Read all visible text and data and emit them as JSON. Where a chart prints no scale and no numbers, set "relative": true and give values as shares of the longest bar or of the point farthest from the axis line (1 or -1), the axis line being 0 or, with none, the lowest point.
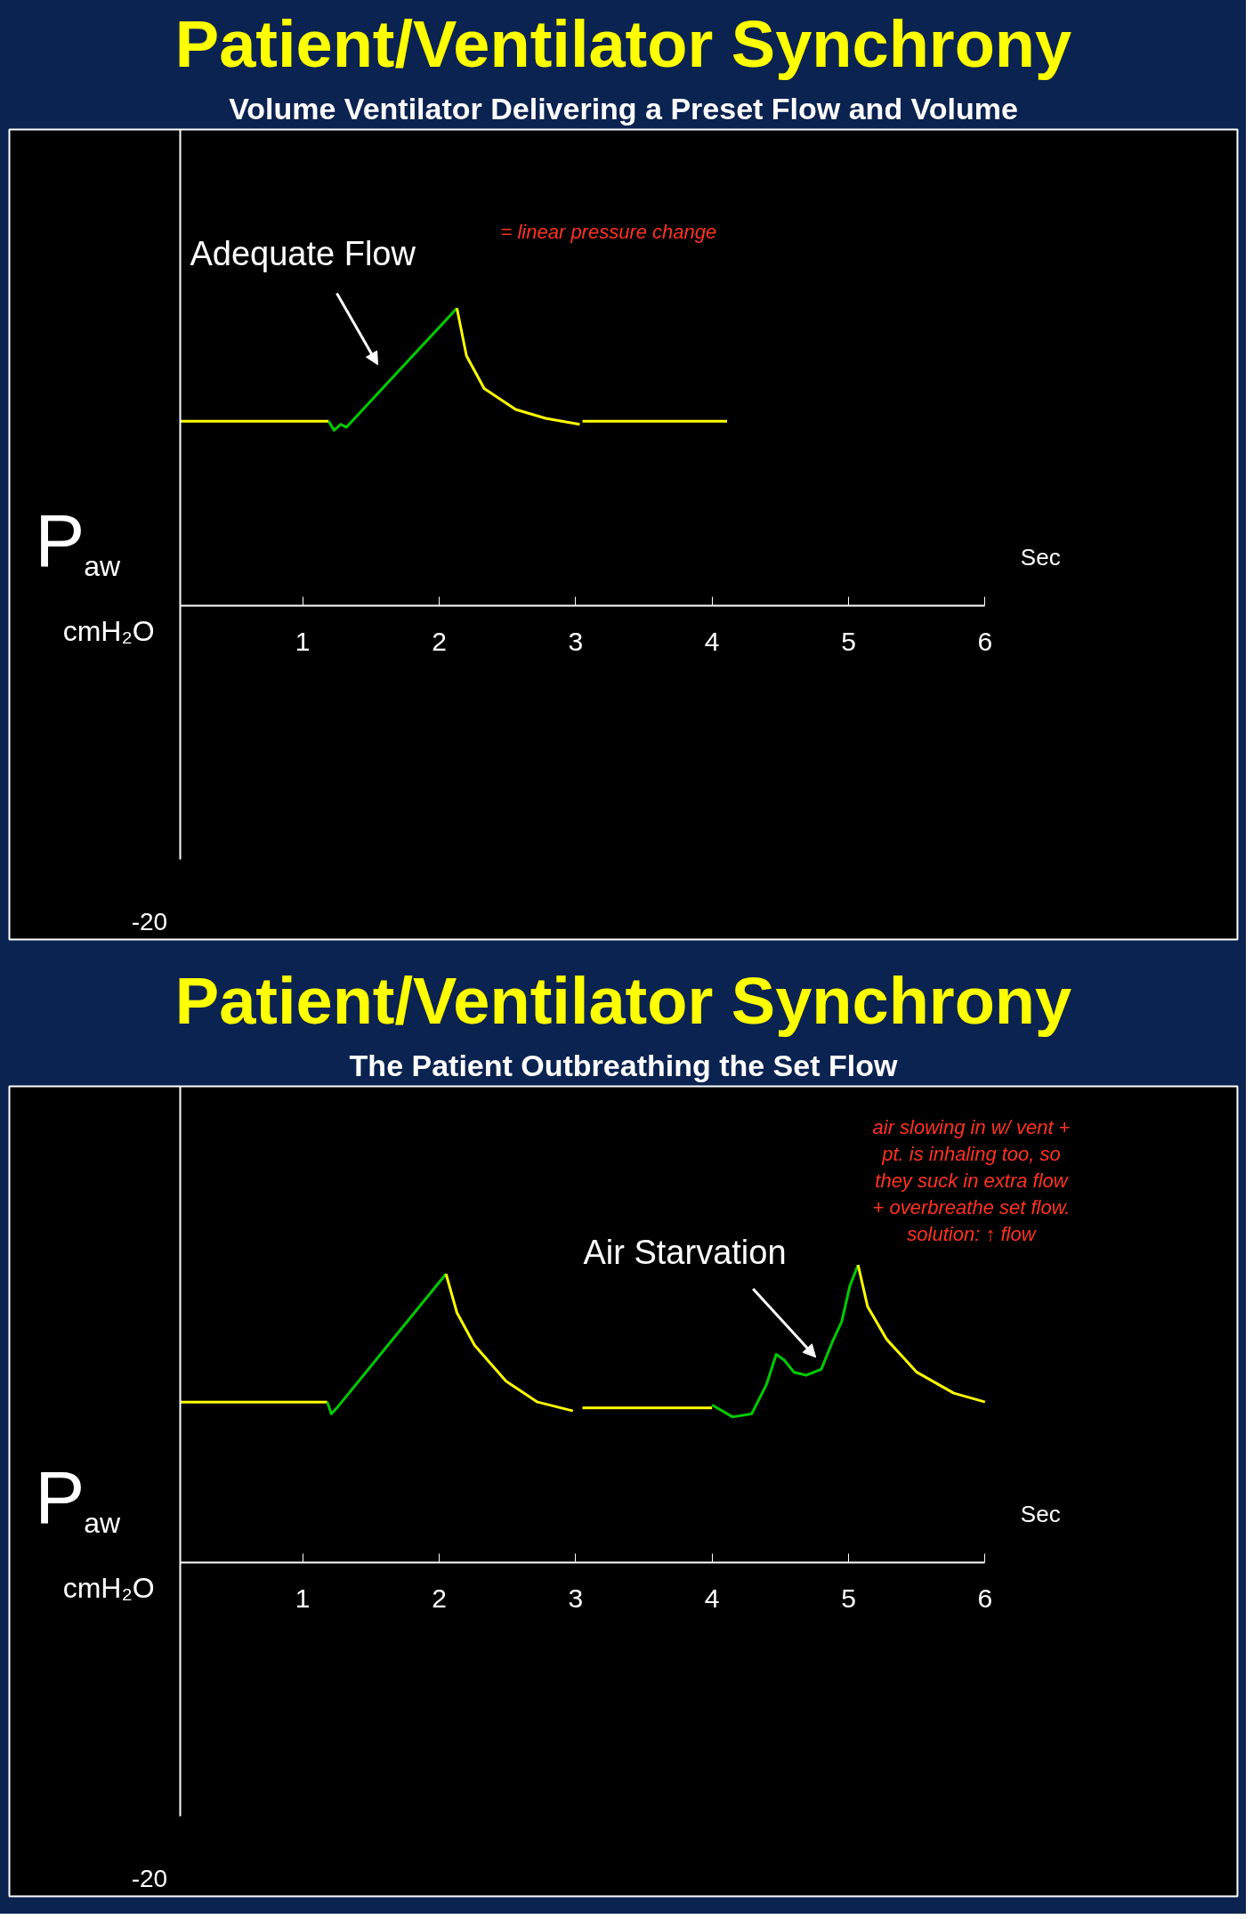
{
  "chart_data": [
    {
      "type": "line",
      "title": "Patient/Ventilator Synchrony",
      "subtitle": "Volume Ventilator Delivering a Preset Flow and Volume",
      "xlabel": "Sec",
      "ylabel": "P$_{aw}$ cmH₂O",
      "relative": true,
      "xlim": [
        0.1,
        6.0
      ],
      "xticks": [
        1,
        2,
        3,
        4,
        5,
        6
      ],
      "series": [
        {
          "color": "#ffff00",
          "x": [
            0.1,
            1.19
          ],
          "values": [
            0.62,
            0.62
          ]
        },
        {
          "color": "#00cc00",
          "x": [
            1.19,
            1.23,
            1.28,
            1.32,
            2.13
          ],
          "values": [
            0.62,
            0.59,
            0.61,
            0.6,
            1.0
          ]
        },
        {
          "color": "#ffff00",
          "x": [
            2.13,
            2.2,
            2.33,
            2.56,
            2.78,
            3.03
          ],
          "values": [
            1.0,
            0.84,
            0.73,
            0.66,
            0.63,
            0.61
          ]
        },
        {
          "color": "#ffff00",
          "x": [
            3.05,
            4.11
          ],
          "values": [
            0.62,
            0.62
          ]
        }
      ],
      "annotations": [
        "Adequate Flow",
        "= linear pressure change",
        "-20"
      ]
    },
    {
      "type": "line",
      "title": "Patient/Ventilator Synchrony",
      "subtitle": "The Patient Outbreathing the Set Flow",
      "xlabel": "Sec",
      "ylabel": "P$_{aw}$ cmH₂O",
      "relative": true,
      "xlim": [
        0.1,
        6.0
      ],
      "xticks": [
        1,
        2,
        3,
        4,
        5,
        6
      ],
      "series": [
        {
          "color": "#ffff00",
          "x": [
            0.1,
            1.18
          ],
          "values": [
            0.54,
            0.54
          ]
        },
        {
          "color": "#00cc00",
          "x": [
            1.18,
            1.21,
            1.25,
            2.05
          ],
          "values": [
            0.54,
            0.5,
            0.52,
            0.97
          ]
        },
        {
          "color": "#ffff00",
          "x": [
            2.05,
            2.13,
            2.26,
            2.49,
            2.72,
            2.98
          ],
          "values": [
            0.97,
            0.84,
            0.73,
            0.61,
            0.54,
            0.51
          ]
        },
        {
          "color": "#ffff00",
          "x": [
            3.05,
            4.0
          ],
          "values": [
            0.52,
            0.52
          ]
        },
        {
          "color": "#00cc00",
          "x": [
            4.0,
            4.15,
            4.29,
            4.4,
            4.47,
            4.53,
            4.6,
            4.69,
            4.8,
            4.88,
            4.95,
            5.01,
            5.07
          ],
          "values": [
            0.53,
            0.49,
            0.5,
            0.6,
            0.7,
            0.68,
            0.64,
            0.63,
            0.65,
            0.74,
            0.81,
            0.93,
            1.0
          ]
        },
        {
          "color": "#ffff00",
          "x": [
            5.07,
            5.14,
            5.28,
            5.5,
            5.77,
            6.0
          ],
          "values": [
            1.0,
            0.86,
            0.75,
            0.64,
            0.57,
            0.54
          ]
        }
      ],
      "annotations": [
        "Air Starvation",
        "air slowing in w/ vent +\npt. is inhaling too, so\nthey suck in extra flow\n+ overbreathe set flow.\nsolution: ↑ flow",
        "-20"
      ]
    }
  ]
}
